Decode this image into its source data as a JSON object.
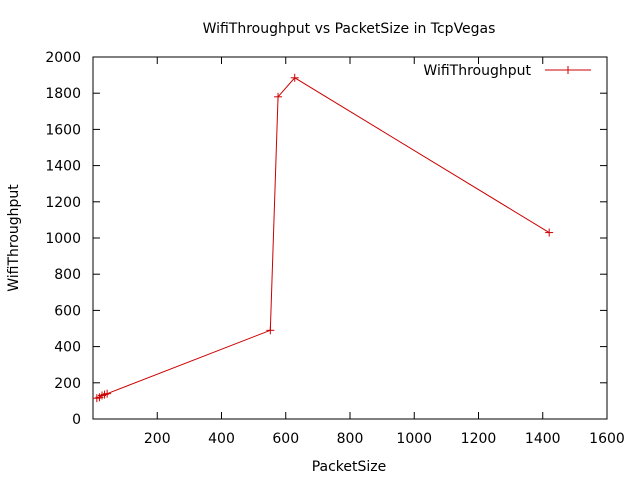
{
  "chart_data": {
    "type": "line",
    "title": "WifiThroughput vs PacketSize in TcpVegas",
    "xlabel": "PacketSize",
    "ylabel": "WifiThroughput",
    "xlim": [
      0,
      1600
    ],
    "ylim": [
      0,
      2000
    ],
    "xticks": [
      200,
      400,
      600,
      800,
      1000,
      1200,
      1400,
      1600
    ],
    "yticks": [
      0,
      200,
      400,
      600,
      800,
      1000,
      1200,
      1400,
      1600,
      1800,
      2000
    ],
    "grid": false,
    "legend_position": "top-right",
    "series": [
      {
        "name": "WifiThroughput",
        "color": "#cc0000",
        "marker": "plus",
        "points": [
          {
            "x": 12,
            "y": 115
          },
          {
            "x": 20,
            "y": 120
          },
          {
            "x": 28,
            "y": 130
          },
          {
            "x": 36,
            "y": 135
          },
          {
            "x": 44,
            "y": 140
          },
          {
            "x": 552,
            "y": 490
          },
          {
            "x": 576,
            "y": 1780
          },
          {
            "x": 628,
            "y": 1885
          },
          {
            "x": 1420,
            "y": 1030
          }
        ]
      }
    ]
  }
}
